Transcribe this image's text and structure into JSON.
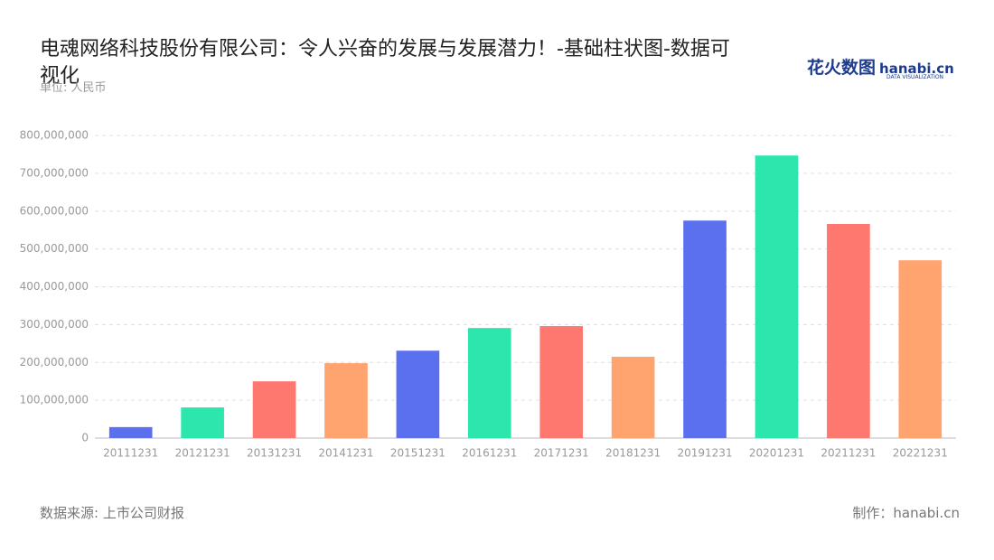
{
  "chart_data": {
    "type": "bar",
    "title": "电魂网络科技股份有限公司：令人兴奋的发展与发展潜力！-基础柱状图-数据可视化",
    "subtitle": "单位: 人民币",
    "source": "数据来源: 上市公司财报",
    "credit": "制作：hanabi.cn",
    "logo": {
      "text": "花火数图",
      "brand": "hanabi.cn",
      "tagline": "DATA VISUALIZATION"
    },
    "categories": [
      "20111231",
      "20121231",
      "20131231",
      "20141231",
      "20151231",
      "20161231",
      "20171231",
      "20181231",
      "20191231",
      "20201231",
      "20211231",
      "20221231"
    ],
    "values": [
      29000000,
      81000000,
      150000000,
      198000000,
      231000000,
      291000000,
      296000000,
      215000000,
      575000000,
      747000000,
      566000000,
      470000000
    ],
    "colors": [
      "#5b70ef",
      "#2de6ae",
      "#ff7870",
      "#ffa36f"
    ],
    "ylim": [
      0,
      800000000
    ],
    "yticks": [
      0,
      {
        "value": 100000000,
        "label": "100,000,000"
      },
      {
        "value": 200000000,
        "label": "200,000,000"
      },
      {
        "value": 300000000,
        "label": "300,000,000"
      },
      {
        "value": 400000000,
        "label": "400,000,000"
      },
      {
        "value": 500000000,
        "label": "500,000,000"
      },
      {
        "value": 600000000,
        "label": "600,000,000"
      },
      {
        "value": 700000000,
        "label": "700,000,000"
      },
      {
        "value": 800000000,
        "label": "800,000,000"
      }
    ],
    "grid": true
  }
}
